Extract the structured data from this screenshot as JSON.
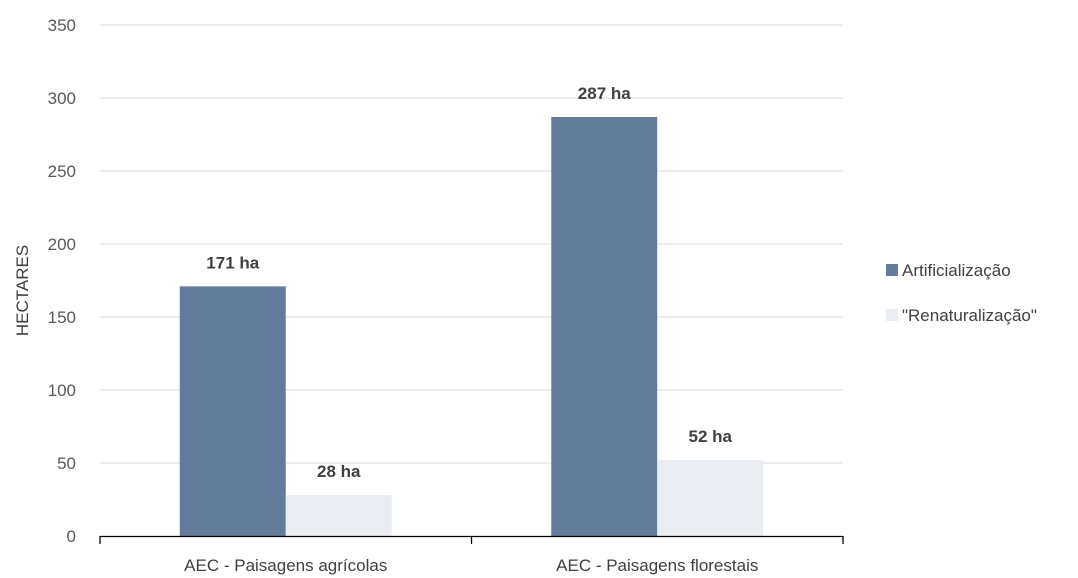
{
  "chart_data": {
    "type": "bar",
    "title": "",
    "ylabel": "HECTARES",
    "xlabel": "",
    "ylim": [
      0,
      350
    ],
    "yticks": [
      0,
      50,
      100,
      150,
      200,
      250,
      300,
      350
    ],
    "grid": true,
    "legend_position": "right",
    "categories": [
      "AEC - Paisagens agrícolas",
      "AEC - Paisagens florestais"
    ],
    "series": [
      {
        "name": "Artificialização",
        "color": "#647C9C",
        "values": [
          171,
          287
        ],
        "labels": [
          "171 ha",
          "287 ha"
        ]
      },
      {
        "name": "\"Renaturalização\"",
        "color": "#E9ECF1",
        "values": [
          28,
          52
        ],
        "labels": [
          "28 ha",
          "52 ha"
        ]
      }
    ]
  }
}
